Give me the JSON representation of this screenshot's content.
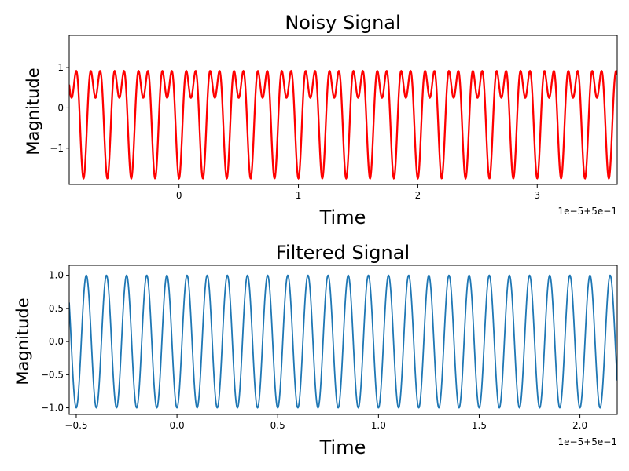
{
  "chart_data": [
    {
      "type": "line",
      "title": "Noisy Signal",
      "xlabel": "Time",
      "ylabel": "Magnitude",
      "offset_label": "1e−5+5e−1",
      "xlim": [
        -0.92,
        3.67
      ],
      "ylim": [
        -1.9,
        1.8
      ],
      "xticks": [
        0,
        1,
        2,
        3
      ],
      "xtick_labels": [
        "0",
        "1",
        "2",
        "3"
      ],
      "yticks": [
        -1,
        0,
        1
      ],
      "ytick_labels": [
        "−1",
        "0",
        "1"
      ],
      "grid": false,
      "series": [
        {
          "color": "#ff0000",
          "x_start": -0.92,
          "x_end": 3.67,
          "components": [
            {
              "amplitude": 1.0,
              "cycles_per_unit": 5.0,
              "phase_deg": -90
            },
            {
              "amplitude": 0.75,
              "cycles_per_unit": 10.0,
              "phase_deg": -90
            }
          ]
        }
      ]
    },
    {
      "type": "line",
      "title": "Filtered Signal",
      "xlabel": "Time",
      "ylabel": "Magnitude",
      "offset_label": "1e−5+5e−1",
      "xlim": [
        -0.535,
        2.185
      ],
      "ylim": [
        -1.1,
        1.15
      ],
      "xticks": [
        -0.5,
        0.0,
        0.5,
        1.0,
        1.5,
        2.0
      ],
      "xtick_labels": [
        "−0.5",
        "0.0",
        "0.5",
        "1.0",
        "1.5",
        "2.0"
      ],
      "yticks": [
        -1.0,
        -0.5,
        0.0,
        0.5,
        1.0
      ],
      "ytick_labels": [
        "−1.0",
        "−0.5",
        "0.0",
        "0.5",
        "1.0"
      ],
      "grid": false,
      "series": [
        {
          "color": "#1f77b4",
          "x_start": -0.535,
          "x_end": 2.185,
          "components": [
            {
              "amplitude": 1.0,
              "cycles_per_unit": 10.0,
              "phase_deg": -90
            }
          ]
        }
      ]
    }
  ]
}
